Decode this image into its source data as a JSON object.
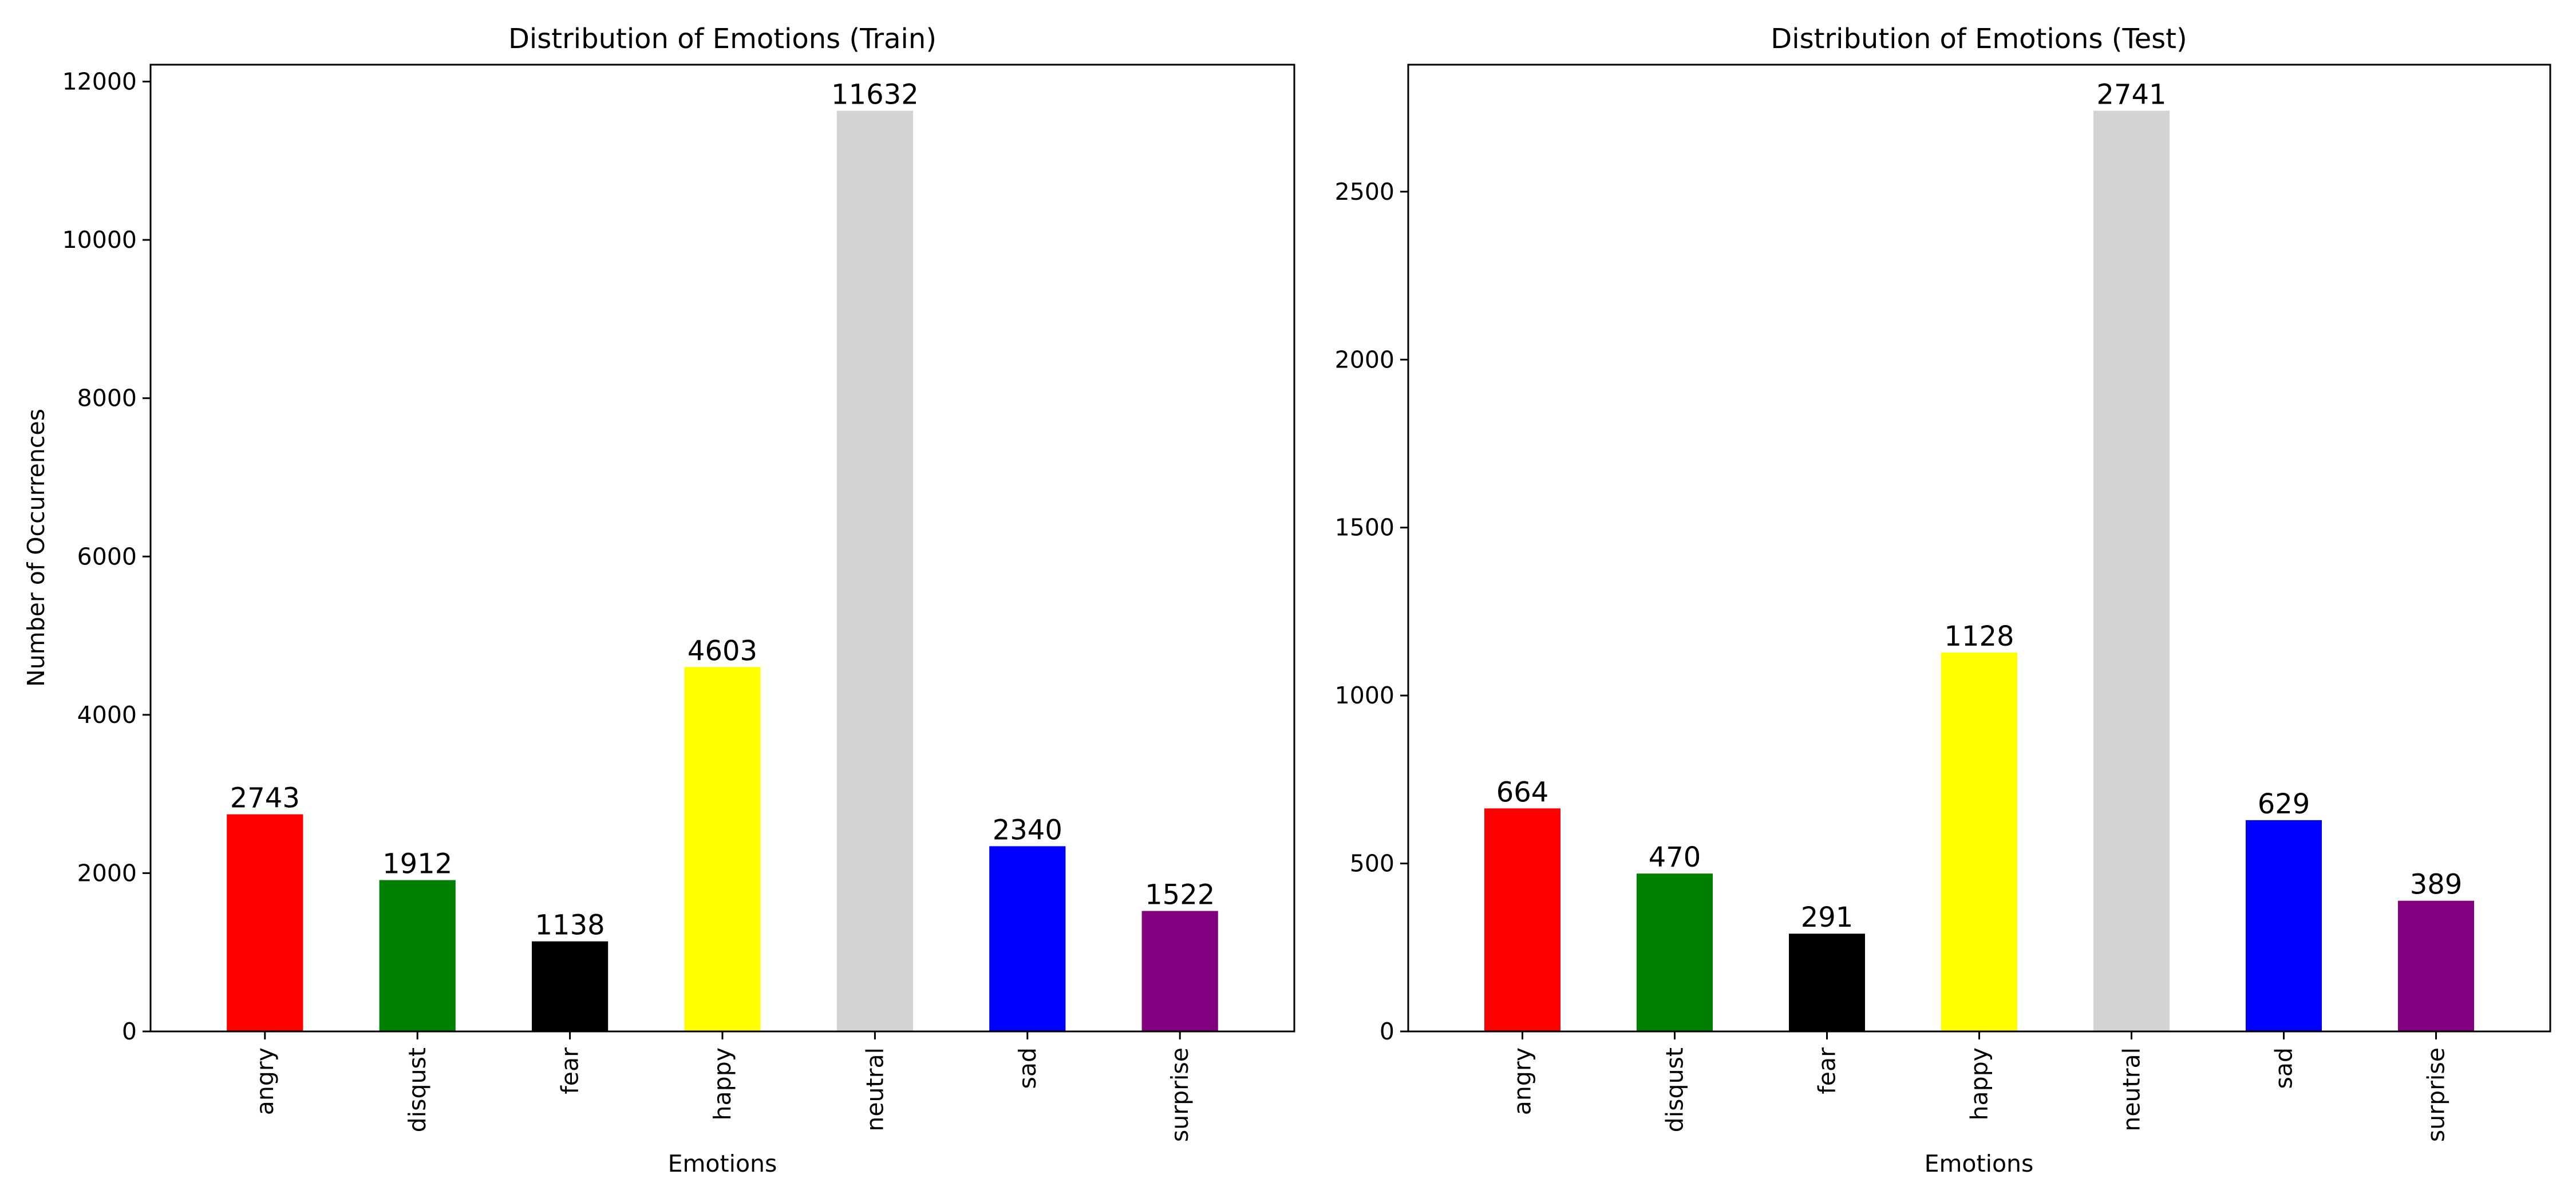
{
  "chart_data": [
    {
      "type": "bar",
      "title": "Distribution of Emotions (Train)",
      "xlabel": "Emotions",
      "ylabel": "Number of Occurrences",
      "categories": [
        "angry",
        "disqust",
        "fear",
        "happy",
        "neutral",
        "sad",
        "surprise"
      ],
      "values": [
        2743,
        1912,
        1138,
        4603,
        11632,
        2340,
        1522
      ],
      "colors": [
        "#ff0000",
        "#008000",
        "#000000",
        "#ffff00",
        "#d3d3d3",
        "#0000ff",
        "#800080"
      ],
      "ylim": [
        0,
        12213.6
      ],
      "yticks": [
        0,
        2000,
        4000,
        6000,
        8000,
        10000,
        12000
      ],
      "grid": false,
      "legend": "none"
    },
    {
      "type": "bar",
      "title": "Distribution of Emotions (Test)",
      "xlabel": "Emotions",
      "ylabel": "",
      "categories": [
        "angry",
        "disqust",
        "fear",
        "happy",
        "neutral",
        "sad",
        "surprise"
      ],
      "values": [
        664,
        470,
        291,
        1128,
        2741,
        629,
        389
      ],
      "colors": [
        "#ff0000",
        "#008000",
        "#000000",
        "#ffff00",
        "#d3d3d3",
        "#0000ff",
        "#800080"
      ],
      "ylim": [
        0,
        2878.05
      ],
      "yticks": [
        0,
        500,
        1000,
        1500,
        2000,
        2500
      ],
      "grid": false,
      "legend": "none"
    }
  ]
}
